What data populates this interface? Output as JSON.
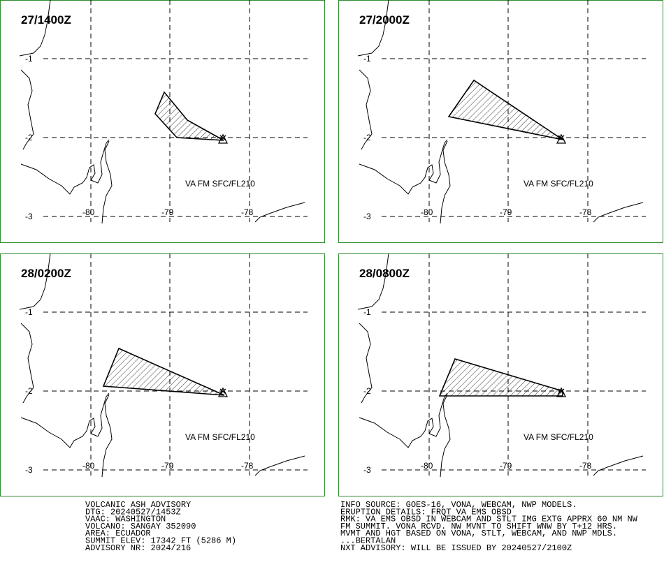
{
  "panels": [
    {
      "time": "27/1400Z",
      "layer": "VA FM SFC/FL210"
    },
    {
      "time": "27/2000Z",
      "layer": "VA FM SFC/FL210"
    },
    {
      "time": "28/0200Z",
      "layer": "VA FM SFC/FL210"
    },
    {
      "time": "28/0800Z",
      "layer": "VA FM SFC/FL210"
    }
  ],
  "grid": {
    "lat_labels": [
      "-1",
      "-2",
      "-3"
    ],
    "lon_labels": [
      "-80",
      "-79",
      "-78"
    ]
  },
  "advisory_left": [
    "VOLCANIC ASH ADVISORY",
    "DTG: 20240527/1453Z",
    "VAAC: WASHINGTON",
    "VOLCANO: SANGAY 352090",
    "AREA: ECUADOR",
    "SUMMIT ELEV: 17342 FT (5286 M)",
    "ADVISORY NR: 2024/216"
  ],
  "advisory_right": [
    "INFO SOURCE: GOES-16, VONA, WEBCAM, NWP MODELS.",
    "ERUPTION DETAILS: FRQT VA EMS OBSD",
    "RMK: VA EMS OBSD IN WEBCAM AND STLT IMG EXTG APPRX 60 NM NW",
    "FM SUMMIT. VONA RCVD. NW MVNT TO SHIFT WNW BY T+12 HRS.",
    "MVMT AND HGT BASED ON VONA, STLT, WEBCAM, AND NWP MDLS.",
    "...BERTALAN",
    "NXT ADVISORY: WILL BE ISSUED BY 20240527/2100Z"
  ]
}
